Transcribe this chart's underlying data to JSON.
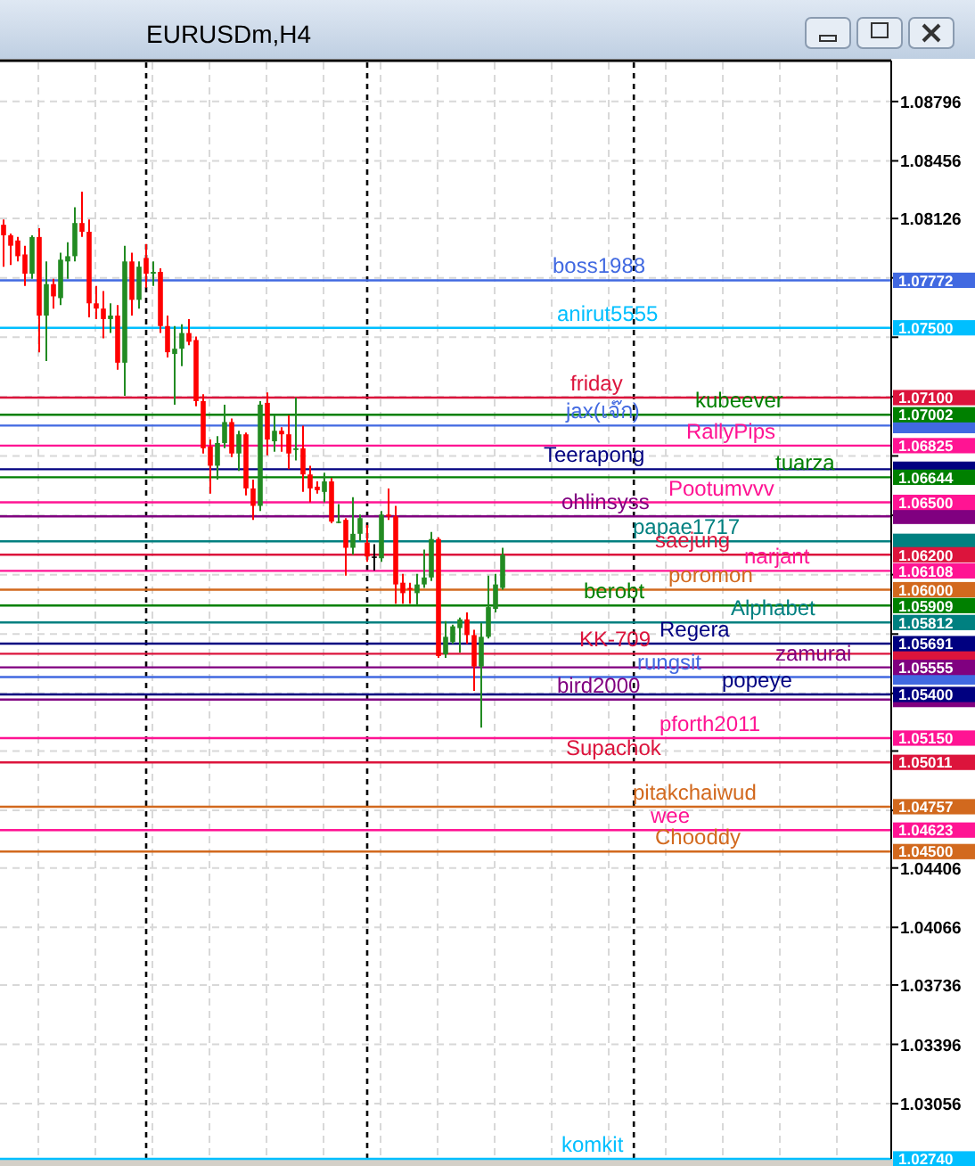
{
  "chart_data": {
    "type": "candlestick",
    "title": "EURUSDm,H4",
    "categories": [
      null,
      null,
      null,
      null,
      null,
      null,
      null,
      null,
      null,
      null,
      null,
      null,
      null,
      null,
      null,
      null,
      null,
      null,
      null,
      null,
      null,
      null,
      null,
      null,
      null,
      null,
      null,
      null,
      null,
      null,
      null,
      null,
      null,
      null,
      null,
      null,
      null,
      null,
      null,
      null,
      null,
      null,
      null,
      null,
      null,
      null,
      null,
      null,
      null,
      null,
      null,
      null,
      null,
      null,
      null,
      null,
      null,
      null,
      null,
      null,
      null,
      null,
      null,
      null,
      null,
      null,
      null,
      null,
      null,
      null,
      null,
      null,
      null,
      null,
      null,
      null,
      null,
      null,
      null,
      null,
      null,
      null,
      null,
      null,
      null,
      null,
      null,
      null,
      null,
      null,
      null,
      null,
      null,
      null,
      null,
      null,
      null,
      null,
      null,
      null,
      null,
      null,
      null,
      null,
      null,
      null,
      null,
      null,
      null,
      null,
      null,
      null,
      null,
      null,
      null,
      null,
      null,
      null,
      null,
      null,
      null,
      null,
      null,
      null,
      null
    ],
    "ohlc": [
      [
        1.0809,
        1.0812,
        1.0785,
        1.0803
      ],
      [
        1.0803,
        1.0804,
        1.0786,
        1.0797
      ],
      [
        1.08,
        1.0802,
        1.0788,
        1.0791
      ],
      [
        1.0792,
        1.0797,
        1.0774,
        1.0781
      ],
      [
        1.0781,
        1.0803,
        1.0778,
        1.0802
      ],
      [
        1.0802,
        1.0807,
        1.0736,
        1.0757
      ],
      [
        1.0757,
        1.0788,
        1.0731,
        1.0775
      ],
      [
        1.0775,
        1.0778,
        1.0761,
        1.0768
      ],
      [
        1.0767,
        1.0793,
        1.0763,
        1.0789
      ],
      [
        1.0788,
        1.0799,
        1.0778,
        1.0791
      ],
      [
        1.0791,
        1.0819,
        1.0788,
        1.081
      ],
      [
        1.081,
        1.0828,
        1.0802,
        1.0805
      ],
      [
        1.0805,
        1.0812,
        1.0756,
        1.0764
      ],
      [
        1.0764,
        1.0774,
        1.0755,
        1.0761
      ],
      [
        1.0761,
        1.0771,
        1.0744,
        1.0755
      ],
      [
        1.0755,
        1.0764,
        1.0747,
        1.0757
      ],
      [
        1.0757,
        1.0763,
        1.0726,
        1.073
      ],
      [
        1.073,
        1.0797,
        1.0711,
        1.0788
      ],
      [
        1.0788,
        1.0793,
        1.0757,
        1.0766
      ],
      [
        1.0766,
        1.0788,
        1.0761,
        1.0785
      ],
      [
        1.079,
        1.0798,
        1.0773,
        1.0781
      ],
      [
        1.0781,
        1.0788,
        1.0774,
        1.0782
      ],
      [
        1.0782,
        1.0784,
        1.0747,
        1.0751
      ],
      [
        1.0751,
        1.0757,
        1.0733,
        1.0736
      ],
      [
        1.0735,
        1.0751,
        1.0706,
        1.0738
      ],
      [
        1.0738,
        1.0752,
        1.0728,
        1.0747
      ],
      [
        1.0747,
        1.0755,
        1.074,
        1.0742
      ],
      [
        1.0743,
        1.0745,
        1.0705,
        1.0708
      ],
      [
        1.0708,
        1.0712,
        1.0678,
        1.0681
      ],
      [
        1.0682,
        1.0686,
        1.0655,
        1.0671
      ],
      [
        1.0671,
        1.0688,
        1.0663,
        1.0684
      ],
      [
        1.0684,
        1.0706,
        1.0681,
        1.0696
      ],
      [
        1.0696,
        1.0698,
        1.0676,
        1.0678
      ],
      [
        1.0678,
        1.0691,
        1.0668,
        1.0689
      ],
      [
        1.0689,
        1.069,
        1.0654,
        1.0658
      ],
      [
        1.0658,
        1.0663,
        1.064,
        1.0648
      ],
      [
        1.0648,
        1.0708,
        1.0645,
        1.0706
      ],
      [
        1.0707,
        1.0713,
        1.0677,
        1.0686
      ],
      [
        1.0685,
        1.07,
        1.0679,
        1.0691
      ],
      [
        1.0691,
        1.0693,
        1.0679,
        1.0689
      ],
      [
        1.0689,
        1.07,
        1.0669,
        1.0678
      ],
      [
        1.068,
        1.071,
        1.0674,
        1.0681
      ],
      [
        1.0681,
        1.0694,
        1.0656,
        1.0666
      ],
      [
        1.0666,
        1.0671,
        1.065,
        1.0658
      ],
      [
        1.0659,
        1.0662,
        1.0655,
        1.0657
      ],
      [
        1.0656,
        1.0667,
        1.065,
        1.0662
      ],
      [
        1.0662,
        1.0664,
        1.0638,
        1.0639
      ],
      [
        1.0639,
        1.0649,
        1.0638,
        1.0639
      ],
      [
        1.064,
        1.0641,
        1.0608,
        1.0624
      ],
      [
        1.0624,
        1.0653,
        1.062,
        1.0632
      ],
      [
        1.0632,
        1.0643,
        1.0628,
        1.0641
      ],
      [
        1.0627,
        1.0637,
        1.0616,
        1.0619
      ],
      [
        1.0619,
        1.0626,
        1.0611,
        1.0619
      ],
      [
        1.0618,
        1.0645,
        1.0616,
        1.0643
      ],
      [
        1.0643,
        1.0658,
        1.064,
        1.0642
      ],
      [
        1.0642,
        1.0648,
        1.0592,
        1.0603
      ],
      [
        1.0604,
        1.0609,
        1.0592,
        1.0598
      ],
      [
        1.0601,
        1.0604,
        1.0592,
        1.06
      ],
      [
        1.0598,
        1.0609,
        1.0591,
        1.0603
      ],
      [
        1.0603,
        1.0623,
        1.0601,
        1.0607
      ],
      [
        1.0607,
        1.0633,
        1.0605,
        1.0629
      ],
      [
        1.0629,
        1.063,
        1.0561,
        1.0562
      ],
      [
        1.0563,
        1.0582,
        1.0561,
        1.0573
      ],
      [
        1.057,
        1.058,
        1.0569,
        1.0579
      ],
      [
        1.0578,
        1.0584,
        1.0564,
        1.0583
      ],
      [
        1.0583,
        1.0587,
        1.0569,
        1.0574
      ],
      [
        1.0574,
        1.0577,
        1.0542,
        1.0556
      ],
      [
        1.0556,
        1.0581,
        1.0521,
        1.0573
      ],
      [
        1.0573,
        1.0608,
        1.0572,
        1.059
      ],
      [
        1.0589,
        1.0609,
        1.0587,
        1.0603
      ],
      [
        1.0601,
        1.0624,
        1.06,
        1.062
      ],
      null,
      null,
      null,
      null,
      null,
      null,
      null,
      null,
      null,
      null,
      null,
      null,
      null,
      null,
      null,
      null,
      null,
      null,
      null,
      null,
      null,
      null,
      null,
      null,
      null,
      null,
      null,
      null,
      null,
      null,
      null,
      null,
      null,
      null,
      null,
      null,
      null,
      null,
      null,
      null,
      null,
      null,
      null,
      null,
      null,
      null,
      null,
      null,
      null,
      null,
      null,
      null,
      null,
      null
    ],
    "colors": [
      "#ff0000",
      "#ff0000",
      "#ff0000",
      "#ff0000",
      "#228b22",
      "#ff0000",
      "#228b22",
      "#ff0000",
      "#228b22",
      "#228b22",
      "#228b22",
      "#ff0000",
      "#ff0000",
      "#ff0000",
      "#ff0000",
      "#228b22",
      "#ff0000",
      "#228b22",
      "#ff0000",
      "#228b22",
      "#ff0000",
      "#228b22",
      "#ff0000",
      "#ff0000",
      "#228b22",
      "#228b22",
      "#ff0000",
      "#ff0000",
      "#ff0000",
      "#ff0000",
      "#228b22",
      "#228b22",
      "#ff0000",
      "#228b22",
      "#ff0000",
      "#ff0000",
      "#228b22",
      "#ff0000",
      "#228b22",
      "#ff0000",
      "#ff0000",
      "#228b22",
      "#ff0000",
      "#ff0000",
      "#ff0000",
      "#228b22",
      "#ff0000",
      "#228b22",
      "#ff0000",
      "#228b22",
      "#228b22",
      "#ff0000",
      "#000000",
      "#228b22",
      "#ff0000",
      "#ff0000",
      "#ff0000",
      "#ff0000",
      "#228b22",
      "#228b22",
      "#228b22",
      "#ff0000",
      "#228b22",
      "#228b22",
      "#228b22",
      "#ff0000",
      "#ff0000",
      "#228b22",
      "#228b22",
      "#228b22",
      "#228b22",
      null,
      null,
      null,
      null,
      null,
      null,
      null,
      null,
      null,
      null,
      null,
      null,
      null,
      null,
      null,
      null,
      null,
      null,
      null,
      null,
      null,
      null,
      null,
      null,
      null,
      null,
      null,
      null,
      null,
      null,
      null,
      null,
      null,
      null,
      null,
      null,
      null,
      null,
      null,
      null,
      null,
      null,
      null,
      null,
      null,
      null,
      null,
      null,
      null,
      null,
      null,
      null,
      null,
      null
    ],
    "ylim": [
      1.0274,
      1.0902
    ],
    "yticks": [
      1.08796,
      1.08456,
      1.08126,
      {
        "value": 1.07786,
        "label": null
      },
      {
        "value": 1.07446,
        "label": null
      },
      {
        "value": 1.07106,
        "label": null
      },
      {
        "value": 1.06766,
        "label": null
      },
      {
        "value": 1.06426,
        "label": null
      },
      {
        "value": 1.06086,
        "label": null
      },
      {
        "value": 1.05746,
        "label": null
      },
      {
        "value": 1.05406,
        "label": null
      },
      {
        "value": 1.05076,
        "label": null
      },
      {
        "value": 1.04736,
        "label": null
      },
      1.04406,
      1.04066,
      1.03736,
      1.03396,
      1.03056
    ],
    "grid": true,
    "annotations": [
      "1.07772",
      "1.07500",
      "1.07100",
      "1.07002",
      null,
      "1.06825",
      null,
      "1.06644",
      "1.06500",
      null,
      null,
      "1.06200",
      "1.06108",
      "1.06000",
      "1.05909",
      "1.05812",
      "1.05691",
      null,
      "1.05555",
      null,
      "1.05400",
      null,
      "1.05150",
      "1.05011",
      "1.04757",
      "1.04623",
      "1.04500",
      "1.02740"
    ],
    "ref_lines": [
      {
        "axis": "y",
        "value": 1.07772,
        "label": "boss1988",
        "color": "#4169e1"
      },
      {
        "axis": "y",
        "value": 1.075,
        "label": "anirut5555",
        "color": "#00bfff"
      },
      {
        "axis": "y",
        "value": 1.071,
        "label": "friday",
        "color": "#dc143c"
      },
      {
        "axis": "y",
        "value": 1.07002,
        "label": "kubeever",
        "color": "#008000"
      },
      {
        "axis": "y",
        "value": 1.0694,
        "label": "jax(เจ๊ก)",
        "color": "#4169e1"
      },
      {
        "axis": "y",
        "value": 1.06825,
        "label": "RallyPips",
        "color": "#ff1493"
      },
      {
        "axis": "y",
        "value": 1.0669,
        "label": "Teerapong",
        "color": "#000080"
      },
      {
        "axis": "y",
        "value": 1.06644,
        "label": "tuarza",
        "color": "#008000"
      },
      {
        "axis": "y",
        "value": 1.065,
        "label": "Pootumvvv",
        "color": "#ff1493"
      },
      {
        "axis": "y",
        "value": 1.0642,
        "label": "ohlinsyss",
        "color": "#800080"
      },
      {
        "axis": "y",
        "value": 1.06277,
        "label": "papae1717",
        "color": "#008080"
      },
      {
        "axis": "y",
        "value": 1.062,
        "label": "saejung",
        "color": "#dc143c"
      },
      {
        "axis": "y",
        "value": 1.06108,
        "label": "narjant",
        "color": "#ff1493"
      },
      {
        "axis": "y",
        "value": 1.06,
        "label": "poromon",
        "color": "#d2691e"
      },
      {
        "axis": "y",
        "value": 1.05909,
        "label": "berobt",
        "color": "#008000"
      },
      {
        "axis": "y",
        "value": 1.05812,
        "label": "Alphabet",
        "color": "#008080"
      },
      {
        "axis": "y",
        "value": 1.05691,
        "label": "Regera",
        "color": "#000080"
      },
      {
        "axis": "y",
        "value": 1.05633,
        "label": "KK-709",
        "color": "#dc143c"
      },
      {
        "axis": "y",
        "value": 1.05555,
        "label": "zamurai",
        "color": "#800080"
      },
      {
        "axis": "y",
        "value": 1.055,
        "label": "rungsit",
        "color": "#4169e1"
      },
      {
        "axis": "y",
        "value": 1.054,
        "label": "popeye",
        "color": "#000080"
      },
      {
        "axis": "y",
        "value": 1.05371,
        "label": "bird2000",
        "color": "#800080"
      },
      {
        "axis": "y",
        "value": 1.0515,
        "label": "pforth2011",
        "color": "#ff1493"
      },
      {
        "axis": "y",
        "value": 1.05011,
        "label": "Supachok",
        "color": "#dc143c"
      },
      {
        "axis": "y",
        "value": 1.04757,
        "label": "pitakchaiwud",
        "color": "#d2691e"
      },
      {
        "axis": "y",
        "value": 1.04623,
        "label": "wee",
        "color": "#ff1493"
      },
      {
        "axis": "y",
        "value": 1.045,
        "label": "Chooddy",
        "color": "#d2691e"
      },
      {
        "axis": "y",
        "value": 1.0274,
        "label": "komkit",
        "color": "#00bfff"
      }
    ]
  }
}
